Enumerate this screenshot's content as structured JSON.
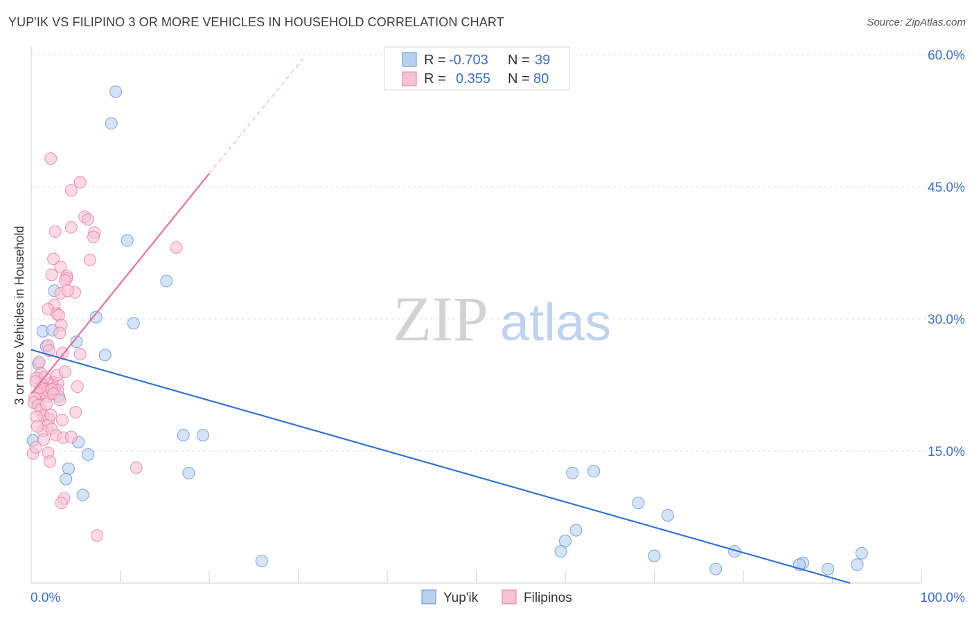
{
  "title": "YUP'IK VS FILIPINO 3 OR MORE VEHICLES IN HOUSEHOLD CORRELATION CHART",
  "source": "Source: ZipAtlas.com",
  "watermark": {
    "zip": "ZIP",
    "atlas": "atlas"
  },
  "chart_data": {
    "type": "scatter",
    "xlabel": "",
    "ylabel": "3 or more Vehicles in Household",
    "xlim": [
      0,
      100
    ],
    "ylim": [
      0,
      60
    ],
    "x_tick_labels": [
      "0.0%",
      "100.0%"
    ],
    "y_ticks": [
      15,
      30,
      45,
      60
    ],
    "y_tick_labels": [
      "15.0%",
      "30.0%",
      "45.0%",
      "60.0%"
    ],
    "grid": true,
    "legend_top": [
      {
        "label_r": "R =",
        "r": "-0.703",
        "label_n": "N =",
        "n": "39"
      },
      {
        "label_r": "R =",
        "r": "0.355",
        "label_n": "N =",
        "n": "80"
      }
    ],
    "series": [
      {
        "name": "Yup'ik",
        "color": "#5b8fd6",
        "fill": "#b8d0f0",
        "trend": {
          "x": [
            0,
            92
          ],
          "y": [
            26.5,
            0
          ]
        },
        "points": [
          [
            9.5,
            55.8
          ],
          [
            9.0,
            52.2
          ],
          [
            10.8,
            38.9
          ],
          [
            15.2,
            34.3
          ],
          [
            7.3,
            30.2
          ],
          [
            11.5,
            29.5
          ],
          [
            2.6,
            33.2
          ],
          [
            1.3,
            28.6
          ],
          [
            1.7,
            26.9
          ],
          [
            5.1,
            27.4
          ],
          [
            2.4,
            28.7
          ],
          [
            0.8,
            24.9
          ],
          [
            8.3,
            25.9
          ],
          [
            3.1,
            21.2
          ],
          [
            0.2,
            16.2
          ],
          [
            5.3,
            16.0
          ],
          [
            6.4,
            14.6
          ],
          [
            4.2,
            13.0
          ],
          [
            3.9,
            11.8
          ],
          [
            5.8,
            10.0
          ],
          [
            17.1,
            16.8
          ],
          [
            19.3,
            16.8
          ],
          [
            17.7,
            12.5
          ],
          [
            25.9,
            2.5
          ],
          [
            60.8,
            12.5
          ],
          [
            63.2,
            12.7
          ],
          [
            68.2,
            9.1
          ],
          [
            71.5,
            7.7
          ],
          [
            61.2,
            6.0
          ],
          [
            60.0,
            4.8
          ],
          [
            59.5,
            3.6
          ],
          [
            70.0,
            3.1
          ],
          [
            79.0,
            3.6
          ],
          [
            76.9,
            1.6
          ],
          [
            86.7,
            2.3
          ],
          [
            86.3,
            2.1
          ],
          [
            89.5,
            1.6
          ],
          [
            93.3,
            3.4
          ],
          [
            92.8,
            2.1
          ]
        ]
      },
      {
        "name": "Filipinos",
        "color": "#e8779e",
        "fill": "#f7c3d4",
        "trend": {
          "x": [
            0,
            20
          ],
          "y": [
            21.5,
            46.5
          ]
        },
        "trend_dashed": {
          "x": [
            20,
            30.5
          ],
          "y": [
            46.5,
            59.5
          ]
        },
        "points": [
          [
            2.2,
            48.2
          ],
          [
            5.5,
            45.5
          ],
          [
            4.5,
            44.6
          ],
          [
            6.0,
            41.6
          ],
          [
            6.4,
            41.3
          ],
          [
            4.5,
            40.4
          ],
          [
            2.7,
            39.9
          ],
          [
            7.1,
            39.8
          ],
          [
            7.0,
            39.3
          ],
          [
            16.3,
            38.1
          ],
          [
            2.5,
            36.8
          ],
          [
            6.6,
            36.7
          ],
          [
            3.3,
            35.9
          ],
          [
            2.3,
            35.0
          ],
          [
            4.0,
            34.9
          ],
          [
            4.0,
            34.6
          ],
          [
            3.8,
            34.4
          ],
          [
            3.3,
            32.9
          ],
          [
            4.9,
            33.0
          ],
          [
            4.1,
            33.2
          ],
          [
            2.6,
            31.6
          ],
          [
            1.9,
            31.1
          ],
          [
            2.9,
            30.6
          ],
          [
            3.1,
            30.4
          ],
          [
            3.4,
            29.3
          ],
          [
            3.2,
            28.4
          ],
          [
            1.9,
            27.0
          ],
          [
            3.5,
            26.1
          ],
          [
            5.5,
            26.0
          ],
          [
            1.1,
            23.8
          ],
          [
            2.4,
            22.8
          ],
          [
            2.0,
            22.6
          ],
          [
            1.3,
            22.5
          ],
          [
            3.0,
            22.7
          ],
          [
            5.2,
            22.3
          ],
          [
            0.6,
            23.3
          ],
          [
            1.6,
            22.0
          ],
          [
            1.2,
            21.6
          ],
          [
            0.9,
            21.4
          ],
          [
            0.4,
            21.0
          ],
          [
            1.8,
            21.2
          ],
          [
            0.3,
            20.5
          ],
          [
            1.9,
            21.8
          ],
          [
            2.6,
            22.1
          ],
          [
            3.0,
            21.9
          ],
          [
            0.8,
            20.2
          ],
          [
            1.1,
            19.7
          ],
          [
            1.4,
            19.0
          ],
          [
            2.0,
            18.6
          ],
          [
            0.6,
            18.9
          ],
          [
            3.5,
            18.5
          ],
          [
            5.0,
            19.4
          ],
          [
            1.8,
            17.9
          ],
          [
            1.3,
            17.3
          ],
          [
            2.3,
            17.5
          ],
          [
            2.8,
            16.8
          ],
          [
            3.6,
            16.5
          ],
          [
            4.5,
            16.6
          ],
          [
            0.2,
            14.7
          ],
          [
            0.5,
            15.4
          ],
          [
            1.9,
            14.8
          ],
          [
            2.1,
            13.8
          ],
          [
            11.8,
            13.1
          ],
          [
            3.7,
            9.6
          ],
          [
            3.4,
            9.1
          ],
          [
            7.4,
            5.4
          ],
          [
            1.5,
            23.4
          ],
          [
            2.3,
            22.0
          ],
          [
            2.5,
            21.5
          ],
          [
            1.0,
            22.2
          ],
          [
            0.5,
            22.9
          ],
          [
            3.2,
            20.8
          ],
          [
            1.7,
            20.3
          ],
          [
            2.2,
            19.1
          ],
          [
            0.7,
            17.8
          ],
          [
            1.4,
            16.3
          ],
          [
            2.9,
            23.6
          ],
          [
            3.8,
            24.0
          ],
          [
            0.9,
            25.1
          ],
          [
            2.0,
            26.4
          ]
        ]
      }
    ],
    "bottom_legend": [
      "Yup'ik",
      "Filipinos"
    ]
  }
}
